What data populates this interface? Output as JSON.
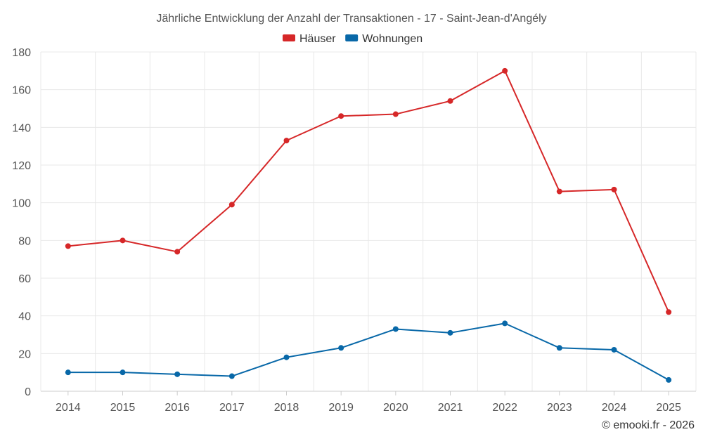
{
  "chart_data": {
    "type": "line",
    "title": "Jährliche Entwicklung der Anzahl der Transaktionen - 17 - Saint-Jean-d'Angély",
    "categories": [
      "2014",
      "2015",
      "2016",
      "2017",
      "2018",
      "2019",
      "2020",
      "2021",
      "2022",
      "2023",
      "2024",
      "2025"
    ],
    "series": [
      {
        "name": "Häuser",
        "color": "#d62728",
        "values": [
          77,
          80,
          74,
          99,
          133,
          146,
          147,
          154,
          170,
          106,
          107,
          42
        ]
      },
      {
        "name": "Wohnungen",
        "color": "#0868a8",
        "values": [
          10,
          10,
          9,
          8,
          18,
          23,
          33,
          31,
          36,
          23,
          22,
          6
        ]
      }
    ],
    "ylim": [
      0,
      180
    ],
    "yticks": [
      0,
      20,
      40,
      60,
      80,
      100,
      120,
      140,
      160,
      180
    ],
    "xlabel": "",
    "ylabel": "",
    "grid": true,
    "legend_position": "top-center"
  },
  "credit": "© emooki.fr - 2026"
}
